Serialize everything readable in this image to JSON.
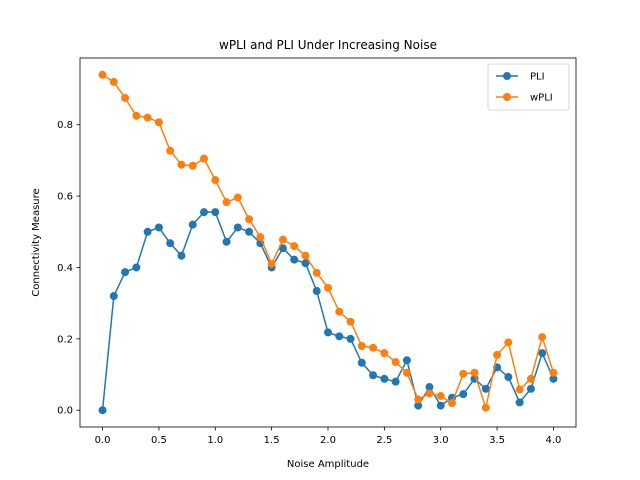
{
  "chart_data": {
    "type": "line",
    "title": "wPLI and PLI Under Increasing Noise",
    "xlabel": "Noise Amplitude",
    "ylabel": "Connectivity Measure",
    "xlim": [
      -0.2,
      4.2
    ],
    "ylim": [
      -0.047,
      0.987
    ],
    "xticks": [
      0.0,
      0.5,
      1.0,
      1.5,
      2.0,
      2.5,
      3.0,
      3.5,
      4.0
    ],
    "xtick_labels": [
      "0.0",
      "0.5",
      "1.0",
      "1.5",
      "2.0",
      "2.5",
      "3.0",
      "3.5",
      "4.0"
    ],
    "yticks": [
      0.0,
      0.2,
      0.4,
      0.6,
      0.8
    ],
    "ytick_labels": [
      "0.0",
      "0.2",
      "0.4",
      "0.6",
      "0.8"
    ],
    "grid": false,
    "legend_position": "top-right",
    "x": [
      0.0,
      0.1,
      0.2,
      0.3,
      0.4,
      0.5,
      0.6,
      0.7,
      0.8,
      0.9,
      1.0,
      1.1,
      1.2,
      1.3,
      1.4,
      1.5,
      1.6,
      1.7,
      1.8,
      1.9,
      2.0,
      2.1,
      2.2,
      2.3,
      2.4,
      2.5,
      2.6,
      2.7,
      2.8,
      2.9,
      3.0,
      3.1,
      3.2,
      3.3,
      3.4,
      3.5,
      3.6,
      3.7,
      3.8,
      3.9,
      4.0
    ],
    "series": [
      {
        "name": "PLI",
        "color": "#1f77b4",
        "values": [
          0.0,
          0.32,
          0.387,
          0.4,
          0.5,
          0.512,
          0.468,
          0.433,
          0.52,
          0.555,
          0.555,
          0.472,
          0.512,
          0.5,
          0.468,
          0.4,
          0.454,
          0.422,
          0.412,
          0.334,
          0.218,
          0.207,
          0.2,
          0.133,
          0.098,
          0.088,
          0.08,
          0.14,
          0.013,
          0.065,
          0.013,
          0.035,
          0.045,
          0.088,
          0.06,
          0.12,
          0.093,
          0.022,
          0.06,
          0.16,
          0.088
        ]
      },
      {
        "name": "wPLI",
        "color": "#ff7f0e",
        "values": [
          0.94,
          0.92,
          0.875,
          0.825,
          0.82,
          0.807,
          0.727,
          0.688,
          0.685,
          0.705,
          0.645,
          0.583,
          0.596,
          0.535,
          0.485,
          0.41,
          0.478,
          0.46,
          0.433,
          0.385,
          0.343,
          0.276,
          0.248,
          0.18,
          0.175,
          0.16,
          0.135,
          0.105,
          0.03,
          0.047,
          0.04,
          0.02,
          0.102,
          0.105,
          0.007,
          0.155,
          0.19,
          0.058,
          0.088,
          0.205,
          0.105
        ]
      }
    ]
  }
}
